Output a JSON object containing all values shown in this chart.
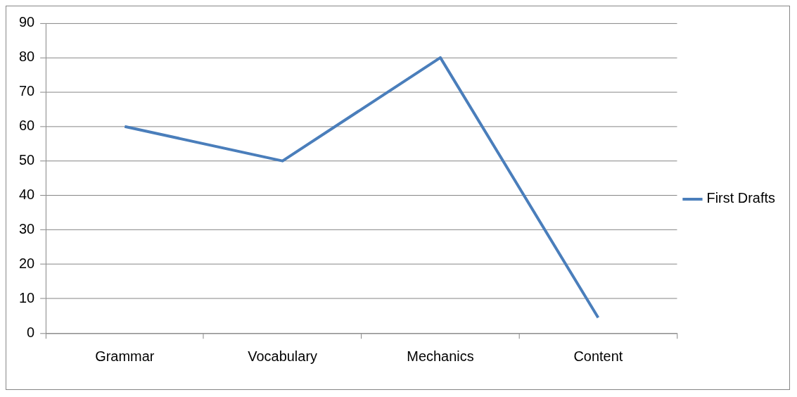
{
  "chart_data": {
    "type": "line",
    "categories": [
      "Grammar",
      "Vocabulary",
      "Mechanics",
      "Content"
    ],
    "series": [
      {
        "name": "First Drafts",
        "color": "#4a7ebb",
        "values": [
          60,
          50,
          80,
          4.5
        ]
      }
    ],
    "ylim": [
      0,
      90
    ],
    "yticks": [
      0,
      10,
      20,
      30,
      40,
      50,
      60,
      70,
      80,
      90
    ],
    "grid": "y",
    "legend": "right",
    "marker": "none",
    "line_style": "solid"
  }
}
